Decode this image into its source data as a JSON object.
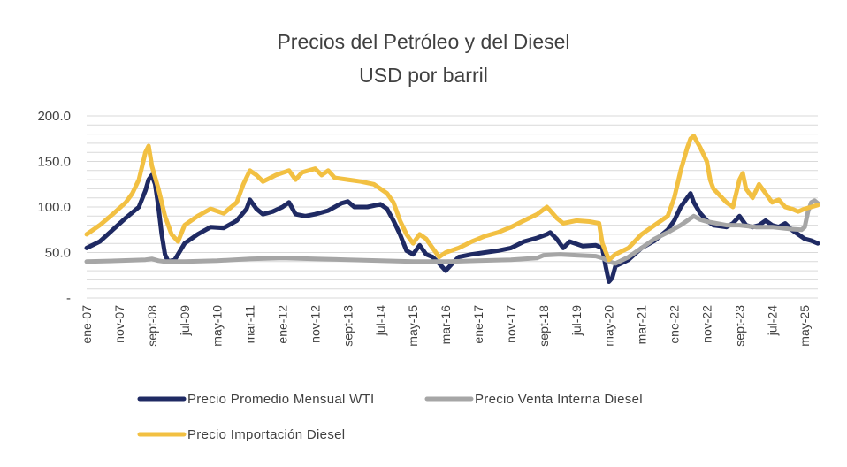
{
  "chart_data": {
    "type": "line",
    "title": "Precios del Petróleo y del Diesel",
    "subtitle": "USD por barril",
    "xlabel": "",
    "ylabel": "",
    "ylim": [
      0,
      200
    ],
    "y_ticks": [
      {
        "value": 0,
        "label": "-"
      },
      {
        "value": 50,
        "label": "50.0"
      },
      {
        "value": 100,
        "label": "100.0"
      },
      {
        "value": 150,
        "label": "150.0"
      },
      {
        "value": 200,
        "label": "200.0"
      }
    ],
    "x_index_range": [
      0,
      224
    ],
    "x_ticks": [
      {
        "index": 0,
        "label": "ene-07"
      },
      {
        "index": 10,
        "label": "nov-07"
      },
      {
        "index": 20,
        "label": "sept-08"
      },
      {
        "index": 30,
        "label": "jul-09"
      },
      {
        "index": 40,
        "label": "may-10"
      },
      {
        "index": 50,
        "label": "mar-11"
      },
      {
        "index": 60,
        "label": "ene-12"
      },
      {
        "index": 70,
        "label": "nov-12"
      },
      {
        "index": 80,
        "label": "sept-13"
      },
      {
        "index": 90,
        "label": "jul-14"
      },
      {
        "index": 100,
        "label": "may-15"
      },
      {
        "index": 110,
        "label": "mar-16"
      },
      {
        "index": 120,
        "label": "ene-17"
      },
      {
        "index": 130,
        "label": "nov-17"
      },
      {
        "index": 140,
        "label": "sept-18"
      },
      {
        "index": 150,
        "label": "jul-19"
      },
      {
        "index": 160,
        "label": "may-20"
      },
      {
        "index": 170,
        "label": "mar-21"
      },
      {
        "index": 180,
        "label": "ene-22"
      },
      {
        "index": 190,
        "label": "nov-22"
      },
      {
        "index": 200,
        "label": "sept-23"
      },
      {
        "index": 210,
        "label": "jul-24"
      },
      {
        "index": 220,
        "label": "may-25"
      }
    ],
    "grid": true,
    "legend_position": "bottom-left",
    "series": [
      {
        "name": "Precio Promedio Mensual WTI",
        "color": "#1f2a63",
        "points": [
          [
            0,
            55
          ],
          [
            4,
            62
          ],
          [
            8,
            75
          ],
          [
            12,
            88
          ],
          [
            16,
            100
          ],
          [
            18,
            118
          ],
          [
            19,
            130
          ],
          [
            20,
            135
          ],
          [
            21,
            125
          ],
          [
            22,
            100
          ],
          [
            23,
            70
          ],
          [
            24,
            48
          ],
          [
            25,
            40
          ],
          [
            27,
            42
          ],
          [
            30,
            60
          ],
          [
            34,
            70
          ],
          [
            38,
            78
          ],
          [
            42,
            77
          ],
          [
            46,
            85
          ],
          [
            49,
            98
          ],
          [
            50,
            108
          ],
          [
            52,
            98
          ],
          [
            54,
            92
          ],
          [
            57,
            95
          ],
          [
            60,
            100
          ],
          [
            62,
            105
          ],
          [
            64,
            92
          ],
          [
            67,
            90
          ],
          [
            70,
            92
          ],
          [
            74,
            96
          ],
          [
            78,
            104
          ],
          [
            80,
            106
          ],
          [
            82,
            100
          ],
          [
            86,
            100
          ],
          [
            90,
            103
          ],
          [
            92,
            98
          ],
          [
            94,
            85
          ],
          [
            96,
            70
          ],
          [
            98,
            52
          ],
          [
            100,
            48
          ],
          [
            102,
            58
          ],
          [
            104,
            48
          ],
          [
            106,
            45
          ],
          [
            108,
            38
          ],
          [
            110,
            30
          ],
          [
            112,
            38
          ],
          [
            114,
            45
          ],
          [
            118,
            48
          ],
          [
            122,
            50
          ],
          [
            126,
            52
          ],
          [
            130,
            55
          ],
          [
            134,
            62
          ],
          [
            138,
            66
          ],
          [
            141,
            70
          ],
          [
            142,
            72
          ],
          [
            144,
            65
          ],
          [
            146,
            55
          ],
          [
            148,
            62
          ],
          [
            152,
            57
          ],
          [
            156,
            58
          ],
          [
            158,
            55
          ],
          [
            159,
            35
          ],
          [
            160,
            18
          ],
          [
            161,
            22
          ],
          [
            162,
            35
          ],
          [
            166,
            42
          ],
          [
            170,
            55
          ],
          [
            174,
            63
          ],
          [
            178,
            75
          ],
          [
            180,
            85
          ],
          [
            182,
            100
          ],
          [
            184,
            110
          ],
          [
            185,
            115
          ],
          [
            186,
            105
          ],
          [
            188,
            93
          ],
          [
            190,
            85
          ],
          [
            192,
            80
          ],
          [
            196,
            78
          ],
          [
            198,
            82
          ],
          [
            200,
            90
          ],
          [
            202,
            80
          ],
          [
            204,
            78
          ],
          [
            206,
            80
          ],
          [
            208,
            85
          ],
          [
            210,
            80
          ],
          [
            212,
            78
          ],
          [
            214,
            82
          ],
          [
            216,
            75
          ],
          [
            218,
            70
          ],
          [
            220,
            65
          ],
          [
            222,
            63
          ],
          [
            224,
            60
          ]
        ]
      },
      {
        "name": "Precio Venta Interna Diesel",
        "color": "#a6a6a6",
        "points": [
          [
            0,
            40
          ],
          [
            10,
            41
          ],
          [
            18,
            42
          ],
          [
            20,
            43
          ],
          [
            22,
            41
          ],
          [
            24,
            40
          ],
          [
            30,
            40
          ],
          [
            40,
            41
          ],
          [
            50,
            43
          ],
          [
            60,
            44
          ],
          [
            70,
            43
          ],
          [
            80,
            42
          ],
          [
            90,
            41
          ],
          [
            100,
            40
          ],
          [
            110,
            40
          ],
          [
            120,
            41
          ],
          [
            130,
            42
          ],
          [
            138,
            44
          ],
          [
            140,
            47
          ],
          [
            145,
            48
          ],
          [
            150,
            47
          ],
          [
            156,
            46
          ],
          [
            158,
            44
          ],
          [
            160,
            40
          ],
          [
            162,
            38
          ],
          [
            166,
            45
          ],
          [
            170,
            55
          ],
          [
            174,
            65
          ],
          [
            178,
            72
          ],
          [
            182,
            80
          ],
          [
            184,
            85
          ],
          [
            186,
            90
          ],
          [
            188,
            86
          ],
          [
            190,
            84
          ],
          [
            196,
            80
          ],
          [
            200,
            80
          ],
          [
            205,
            78
          ],
          [
            210,
            78
          ],
          [
            215,
            76
          ],
          [
            219,
            75
          ],
          [
            220,
            78
          ],
          [
            221,
            95
          ],
          [
            222,
            105
          ],
          [
            223,
            107
          ],
          [
            224,
            104
          ]
        ]
      },
      {
        "name": "Precio Importación Diesel",
        "color": "#f2c042",
        "points": [
          [
            0,
            70
          ],
          [
            4,
            80
          ],
          [
            8,
            92
          ],
          [
            12,
            105
          ],
          [
            14,
            115
          ],
          [
            16,
            130
          ],
          [
            17,
            145
          ],
          [
            18,
            160
          ],
          [
            19,
            167
          ],
          [
            20,
            145
          ],
          [
            22,
            120
          ],
          [
            24,
            90
          ],
          [
            26,
            70
          ],
          [
            28,
            62
          ],
          [
            30,
            80
          ],
          [
            34,
            90
          ],
          [
            38,
            98
          ],
          [
            42,
            93
          ],
          [
            46,
            105
          ],
          [
            48,
            125
          ],
          [
            50,
            140
          ],
          [
            52,
            135
          ],
          [
            54,
            128
          ],
          [
            58,
            135
          ],
          [
            62,
            140
          ],
          [
            64,
            130
          ],
          [
            66,
            138
          ],
          [
            70,
            142
          ],
          [
            72,
            135
          ],
          [
            74,
            140
          ],
          [
            76,
            132
          ],
          [
            80,
            130
          ],
          [
            84,
            128
          ],
          [
            88,
            125
          ],
          [
            90,
            120
          ],
          [
            92,
            115
          ],
          [
            94,
            105
          ],
          [
            96,
            85
          ],
          [
            98,
            70
          ],
          [
            100,
            60
          ],
          [
            102,
            70
          ],
          [
            104,
            65
          ],
          [
            106,
            55
          ],
          [
            108,
            45
          ],
          [
            110,
            50
          ],
          [
            114,
            55
          ],
          [
            118,
            62
          ],
          [
            122,
            68
          ],
          [
            126,
            72
          ],
          [
            130,
            78
          ],
          [
            134,
            85
          ],
          [
            138,
            92
          ],
          [
            141,
            100
          ],
          [
            142,
            96
          ],
          [
            144,
            88
          ],
          [
            146,
            82
          ],
          [
            150,
            85
          ],
          [
            154,
            84
          ],
          [
            157,
            82
          ],
          [
            158,
            60
          ],
          [
            160,
            42
          ],
          [
            162,
            48
          ],
          [
            166,
            55
          ],
          [
            170,
            70
          ],
          [
            174,
            80
          ],
          [
            178,
            90
          ],
          [
            180,
            110
          ],
          [
            182,
            140
          ],
          [
            184,
            165
          ],
          [
            185,
            175
          ],
          [
            186,
            178
          ],
          [
            188,
            165
          ],
          [
            190,
            150
          ],
          [
            191,
            130
          ],
          [
            192,
            120
          ],
          [
            196,
            105
          ],
          [
            198,
            100
          ],
          [
            200,
            130
          ],
          [
            201,
            137
          ],
          [
            202,
            120
          ],
          [
            204,
            110
          ],
          [
            206,
            125
          ],
          [
            208,
            115
          ],
          [
            210,
            105
          ],
          [
            212,
            108
          ],
          [
            214,
            100
          ],
          [
            216,
            98
          ],
          [
            218,
            95
          ],
          [
            220,
            98
          ],
          [
            222,
            100
          ],
          [
            224,
            102
          ]
        ]
      }
    ]
  }
}
